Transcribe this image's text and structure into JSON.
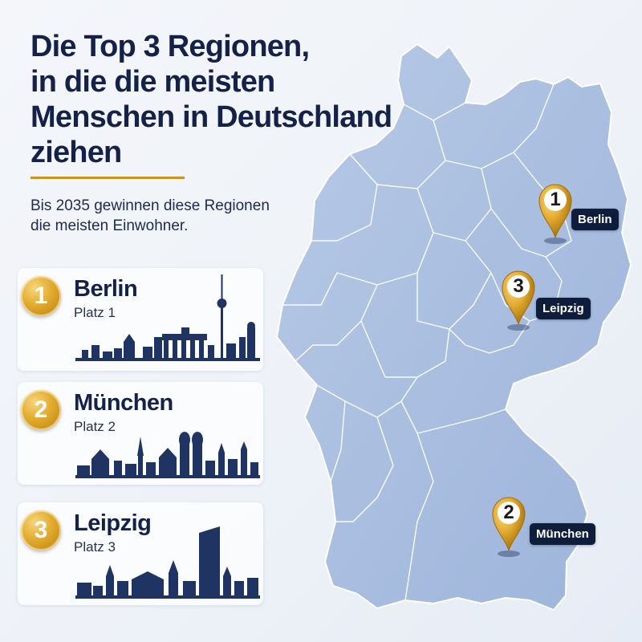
{
  "title_lines": [
    "Die Top 3 Regionen,",
    "in die die meisten",
    "Menschen in Deutschland",
    "ziehen"
  ],
  "subtitle_lines": [
    "Bis 2035 gewinnen diese Regionen",
    "die meisten Einwohner."
  ],
  "cards": [
    {
      "rank": "1",
      "city": "Berlin",
      "label": "Platz 1",
      "skyline_icon": "berlin-skyline-icon"
    },
    {
      "rank": "2",
      "city": "München",
      "label": "Platz 2",
      "skyline_icon": "munich-skyline-icon"
    },
    {
      "rank": "3",
      "city": "Leipzig",
      "label": "Platz 3",
      "skyline_icon": "leipzig-skyline-icon"
    }
  ],
  "map_pins": [
    {
      "rank": "1",
      "label": "Berlin"
    },
    {
      "rank": "3",
      "label": "Leipzig"
    },
    {
      "rank": "2",
      "label": "München"
    }
  ],
  "colors": {
    "navy": "#14224a",
    "gold": "#c9951f",
    "map_fill": "#a9bedf",
    "pin_label_bg": "#0f1d3d"
  },
  "map_icon": "germany-map-icon"
}
